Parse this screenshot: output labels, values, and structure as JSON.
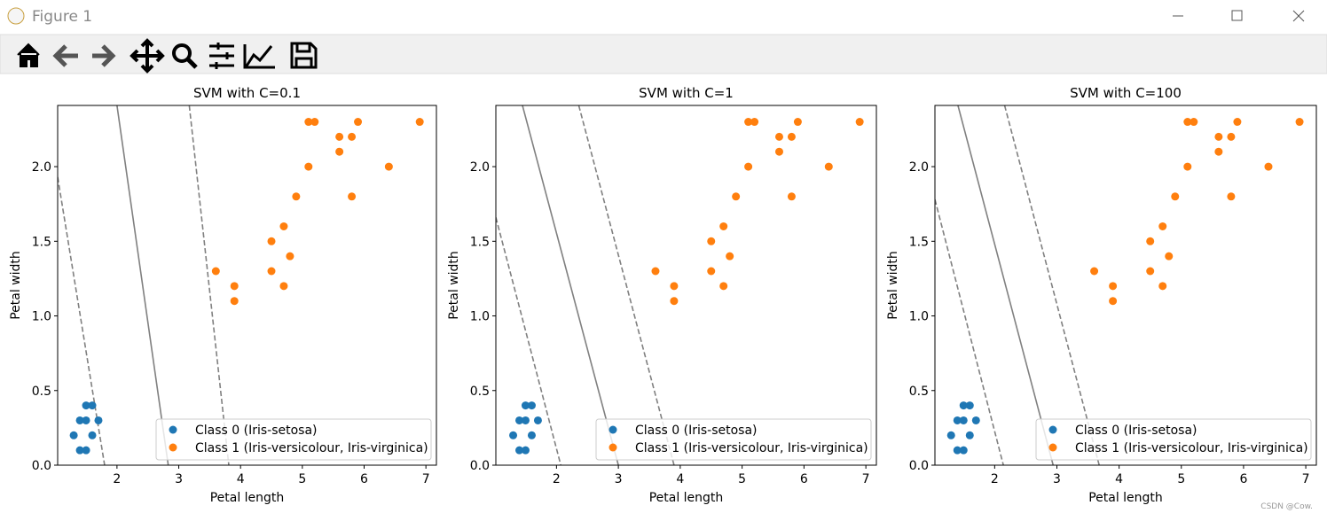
{
  "window": {
    "title": "Figure 1",
    "watermark": "CSDN @Cow."
  },
  "chart_data": [
    {
      "type": "scatter",
      "title": "SVM with C=0.1",
      "x_label": "Petal length",
      "y_label": "Petal width",
      "xlim": [
        1.04,
        7.17
      ],
      "ylim": [
        0,
        2.41
      ],
      "xticks": [
        2,
        3,
        4,
        5,
        6,
        7
      ],
      "yticks": [
        {
          "value": 0,
          "label": "0.0"
        },
        0.5,
        {
          "value": 1,
          "label": "1.0"
        },
        1.5,
        {
          "value": 2,
          "label": "2.0"
        }
      ],
      "legend": "lower right",
      "series": [
        {
          "name": "Class 0 (Iris-setosa)",
          "color": "#1f77b4",
          "x": [
            1.3,
            1.4,
            1.5,
            1.5,
            1.4,
            1.5,
            1.6,
            1.6,
            1.7
          ],
          "values": [
            0.2,
            0.3,
            0.4,
            0.3,
            0.1,
            0.1,
            0.4,
            0.2,
            0.3
          ]
        },
        {
          "name": "Class 1 (Iris-versicolour, Iris-virginica)",
          "color": "#ff7f0e",
          "x": [
            3.6,
            3.9,
            3.9,
            4.5,
            4.5,
            4.7,
            4.7,
            4.8,
            4.9,
            5.1,
            5.1,
            5.2,
            5.6,
            5.6,
            5.8,
            5.8,
            5.9,
            6.4,
            6.9
          ],
          "values": [
            1.3,
            1.2,
            1.1,
            1.5,
            1.3,
            1.6,
            1.2,
            1.4,
            1.8,
            2.0,
            2.3,
            2.3,
            2.2,
            2.1,
            2.2,
            1.8,
            2.3,
            2.0,
            2.3
          ]
        }
      ],
      "lines": [
        {
          "style": "dashed",
          "color": "#808080",
          "x": [
            1.04,
            1.8
          ],
          "values": [
            1.93,
            0
          ]
        },
        {
          "style": "solid",
          "color": "#808080",
          "x": [
            2.0,
            2.83
          ],
          "values": [
            2.41,
            0
          ]
        },
        {
          "style": "dashed",
          "color": "#808080",
          "x": [
            3.17,
            3.81
          ],
          "values": [
            2.41,
            0
          ]
        }
      ]
    },
    {
      "type": "scatter",
      "title": "SVM with C=1",
      "x_label": "Petal length",
      "y_label": "Petal width",
      "xlim": [
        1.02,
        7.17
      ],
      "ylim": [
        0,
        2.41
      ],
      "xticks": [
        2,
        3,
        4,
        5,
        6,
        7
      ],
      "yticks": [
        {
          "value": 0,
          "label": "0.0"
        },
        0.5,
        {
          "value": 1,
          "label": "1.0"
        },
        1.5,
        {
          "value": 2,
          "label": "2.0"
        }
      ],
      "legend": "lower right",
      "series": [
        {
          "name": "Class 0 (Iris-setosa)",
          "color": "#1f77b4",
          "x": [
            1.3,
            1.4,
            1.5,
            1.5,
            1.4,
            1.5,
            1.6,
            1.6,
            1.7
          ],
          "values": [
            0.2,
            0.3,
            0.4,
            0.3,
            0.1,
            0.1,
            0.4,
            0.2,
            0.3
          ]
        },
        {
          "name": "Class 1 (Iris-versicolour, Iris-virginica)",
          "color": "#ff7f0e",
          "x": [
            3.6,
            3.9,
            3.9,
            4.5,
            4.5,
            4.7,
            4.7,
            4.8,
            4.9,
            5.1,
            5.1,
            5.2,
            5.6,
            5.6,
            5.8,
            5.8,
            5.9,
            6.4,
            6.9
          ],
          "values": [
            1.3,
            1.2,
            1.1,
            1.5,
            1.3,
            1.6,
            1.2,
            1.4,
            1.8,
            2.0,
            2.3,
            2.3,
            2.2,
            2.1,
            2.2,
            1.8,
            2.3,
            2.0,
            2.3
          ]
        }
      ],
      "lines": [
        {
          "style": "dashed",
          "color": "#808080",
          "x": [
            1.02,
            2.07
          ],
          "values": [
            1.66,
            0
          ]
        },
        {
          "style": "solid",
          "color": "#808080",
          "x": [
            1.45,
            3.0
          ],
          "values": [
            2.41,
            0
          ]
        },
        {
          "style": "dashed",
          "color": "#808080",
          "x": [
            2.36,
            3.9
          ],
          "values": [
            2.41,
            0
          ]
        }
      ]
    },
    {
      "type": "scatter",
      "title": "SVM with C=100",
      "x_label": "Petal length",
      "y_label": "Petal width",
      "xlim": [
        1.04,
        7.17
      ],
      "ylim": [
        0,
        2.41
      ],
      "xticks": [
        2,
        3,
        4,
        5,
        6,
        7
      ],
      "yticks": [
        {
          "value": 0,
          "label": "0.0"
        },
        0.5,
        {
          "value": 1,
          "label": "1.0"
        },
        1.5,
        {
          "value": 2,
          "label": "2.0"
        }
      ],
      "legend": "lower right",
      "series": [
        {
          "name": "Class 0 (Iris-setosa)",
          "color": "#1f77b4",
          "x": [
            1.3,
            1.4,
            1.5,
            1.5,
            1.4,
            1.5,
            1.6,
            1.6,
            1.7
          ],
          "values": [
            0.2,
            0.3,
            0.4,
            0.3,
            0.1,
            0.1,
            0.4,
            0.2,
            0.3
          ]
        },
        {
          "name": "Class 1 (Iris-versicolour, Iris-virginica)",
          "color": "#ff7f0e",
          "x": [
            3.6,
            3.9,
            3.9,
            4.5,
            4.5,
            4.7,
            4.7,
            4.8,
            4.9,
            5.1,
            5.1,
            5.2,
            5.6,
            5.6,
            5.8,
            5.8,
            5.9,
            6.4,
            6.9
          ],
          "values": [
            1.3,
            1.2,
            1.1,
            1.5,
            1.3,
            1.6,
            1.2,
            1.4,
            1.8,
            2.0,
            2.3,
            2.3,
            2.2,
            2.1,
            2.2,
            1.8,
            2.3,
            2.0,
            2.3
          ]
        }
      ],
      "lines": [
        {
          "style": "dashed",
          "color": "#808080",
          "x": [
            1.04,
            2.14
          ],
          "values": [
            1.78,
            0
          ]
        },
        {
          "style": "solid",
          "color": "#808080",
          "x": [
            1.41,
            2.94
          ],
          "values": [
            2.41,
            0
          ]
        },
        {
          "style": "dashed",
          "color": "#808080",
          "x": [
            2.16,
            3.68
          ],
          "values": [
            2.41,
            0
          ]
        }
      ]
    }
  ]
}
